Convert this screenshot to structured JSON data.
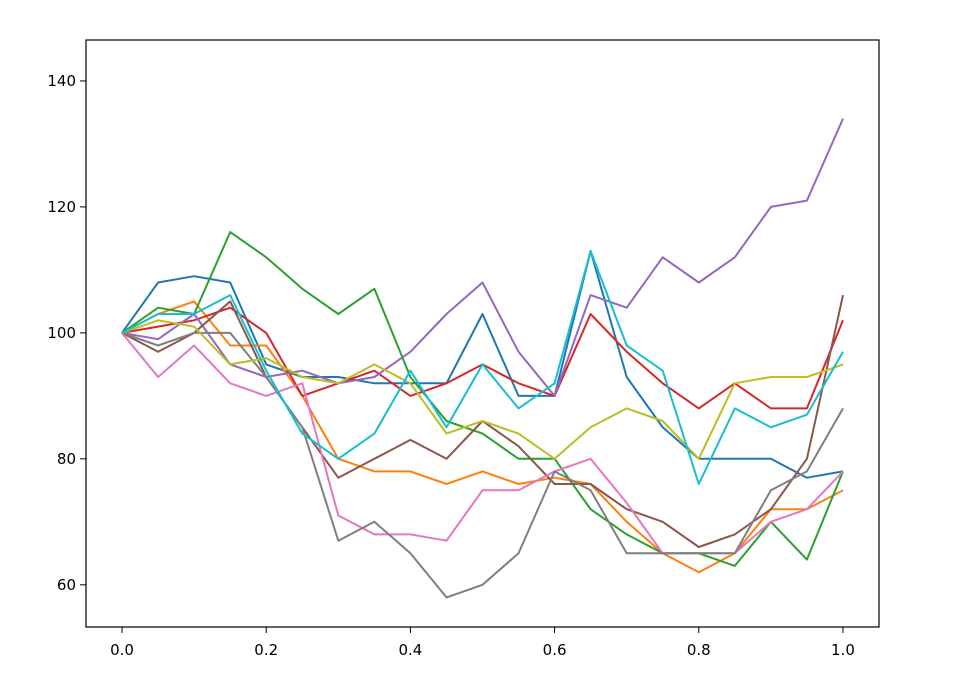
{
  "chart_data": {
    "type": "line",
    "x": [
      0,
      0.05,
      0.1,
      0.15,
      0.2,
      0.25,
      0.3,
      0.35,
      0.4,
      0.45,
      0.5,
      0.55,
      0.6,
      0.65,
      0.7,
      0.75,
      0.8,
      0.85,
      0.9,
      0.95,
      1.0
    ],
    "series": [
      {
        "color": "#1f77b4",
        "values": [
          100,
          108,
          109,
          108,
          95,
          93,
          93,
          92,
          92,
          92,
          103,
          90,
          90,
          113,
          93,
          85,
          80,
          80,
          80,
          77,
          78
        ]
      },
      {
        "color": "#ff7f0e",
        "values": [
          100,
          103,
          105,
          98,
          98,
          90,
          80,
          78,
          78,
          76,
          78,
          76,
          77,
          76,
          70,
          65,
          62,
          65,
          72,
          72,
          75
        ]
      },
      {
        "color": "#2ca02c",
        "values": [
          100,
          104,
          103,
          116,
          112,
          107,
          103,
          107,
          93,
          86,
          84,
          80,
          80,
          72,
          68,
          65,
          65,
          63,
          70,
          64,
          78
        ]
      },
      {
        "color": "#d62728",
        "values": [
          100,
          101,
          102,
          104,
          100,
          90,
          92,
          94,
          90,
          92,
          95,
          92,
          90,
          103,
          97,
          92,
          88,
          92,
          88,
          88,
          102
        ]
      },
      {
        "color": "#9467bd",
        "values": [
          100,
          99,
          103,
          95,
          93,
          94,
          92,
          93,
          97,
          103,
          108,
          97,
          90,
          106,
          104,
          112,
          108,
          112,
          120,
          121,
          134
        ]
      },
      {
        "color": "#8c564b",
        "values": [
          100,
          97,
          100,
          105,
          93,
          85,
          77,
          80,
          83,
          80,
          86,
          82,
          76,
          76,
          72,
          70,
          66,
          68,
          72,
          80,
          106
        ]
      },
      {
        "color": "#e377c2",
        "values": [
          100,
          93,
          98,
          92,
          90,
          92,
          71,
          68,
          68,
          67,
          75,
          75,
          78,
          80,
          73,
          65,
          65,
          65,
          70,
          72,
          78
        ]
      },
      {
        "color": "#7f7f7f",
        "values": [
          100,
          98,
          100,
          100,
          93,
          85,
          67,
          70,
          65,
          58,
          60,
          65,
          78,
          75,
          65,
          65,
          65,
          65,
          75,
          78,
          88
        ]
      },
      {
        "color": "#bcbd22",
        "values": [
          100,
          102,
          101,
          95,
          96,
          93,
          92,
          95,
          92,
          84,
          86,
          84,
          80,
          85,
          88,
          86,
          80,
          92,
          93,
          93,
          95
        ]
      },
      {
        "color": "#17becf",
        "values": [
          100,
          103,
          103,
          106,
          94,
          84,
          80,
          84,
          94,
          85,
          95,
          88,
          92,
          113,
          98,
          94,
          76,
          88,
          85,
          87,
          97
        ]
      }
    ],
    "xlim": [
      -0.05,
      1.05
    ],
    "xticks": [
      {
        "value": 0,
        "label": "0.0"
      },
      0.2,
      0.4,
      0.6,
      0.8,
      {
        "value": 1,
        "label": "1.0"
      }
    ],
    "ylim": [
      53.3,
      146.5
    ],
    "yticks": [
      60,
      80,
      100,
      120,
      140
    ],
    "grid": false
  }
}
